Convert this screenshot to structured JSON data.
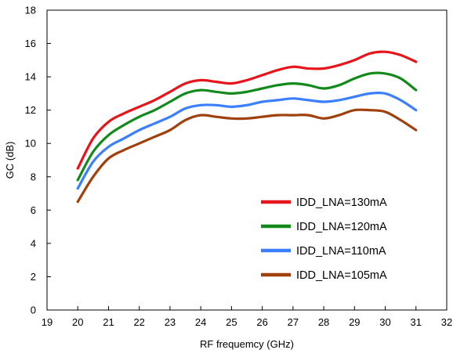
{
  "chart_data": {
    "type": "line",
    "title": "",
    "xlabel": "RF frequemcy (GHz)",
    "ylabel": "GC (dB)",
    "xlim": [
      19,
      32
    ],
    "ylim": [
      0,
      18
    ],
    "xticks": [
      19,
      20,
      21,
      22,
      23,
      24,
      25,
      26,
      27,
      28,
      29,
      30,
      31,
      32
    ],
    "yticks": [
      0,
      2,
      4,
      6,
      8,
      10,
      12,
      14,
      16,
      18
    ],
    "grid": false,
    "legend_position": "bottom-right",
    "x": [
      20,
      20.5,
      21,
      21.5,
      22,
      22.5,
      23,
      23.5,
      24,
      24.5,
      25,
      25.5,
      26,
      26.5,
      27,
      27.5,
      28,
      28.5,
      29,
      29.5,
      30,
      30.5,
      31
    ],
    "series": [
      {
        "name": "IDD_LNA=130mA",
        "color": "#e8141b",
        "values": [
          8.5,
          10.3,
          11.3,
          11.8,
          12.2,
          12.6,
          13.1,
          13.6,
          13.8,
          13.7,
          13.6,
          13.8,
          14.1,
          14.4,
          14.6,
          14.5,
          14.5,
          14.7,
          15.0,
          15.4,
          15.5,
          15.3,
          14.9
        ]
      },
      {
        "name": "IDD_LNA=120mA",
        "color": "#118a1a",
        "values": [
          7.8,
          9.5,
          10.5,
          11.1,
          11.6,
          12.0,
          12.5,
          13.0,
          13.2,
          13.1,
          13.0,
          13.1,
          13.3,
          13.5,
          13.6,
          13.5,
          13.3,
          13.5,
          13.9,
          14.2,
          14.2,
          13.9,
          13.2
        ]
      },
      {
        "name": "IDD_LNA=110mA",
        "color": "#3a7fff",
        "values": [
          7.3,
          8.9,
          9.8,
          10.3,
          10.8,
          11.2,
          11.6,
          12.1,
          12.3,
          12.3,
          12.2,
          12.3,
          12.5,
          12.6,
          12.7,
          12.6,
          12.5,
          12.6,
          12.8,
          13.0,
          13.0,
          12.6,
          12.0
        ]
      },
      {
        "name": "IDD_LNA=105mA",
        "color": "#a0410d",
        "values": [
          6.5,
          8.0,
          9.1,
          9.6,
          10.0,
          10.4,
          10.8,
          11.4,
          11.7,
          11.6,
          11.5,
          11.5,
          11.6,
          11.7,
          11.7,
          11.7,
          11.5,
          11.7,
          12.0,
          12.0,
          11.9,
          11.4,
          10.8
        ]
      }
    ]
  }
}
